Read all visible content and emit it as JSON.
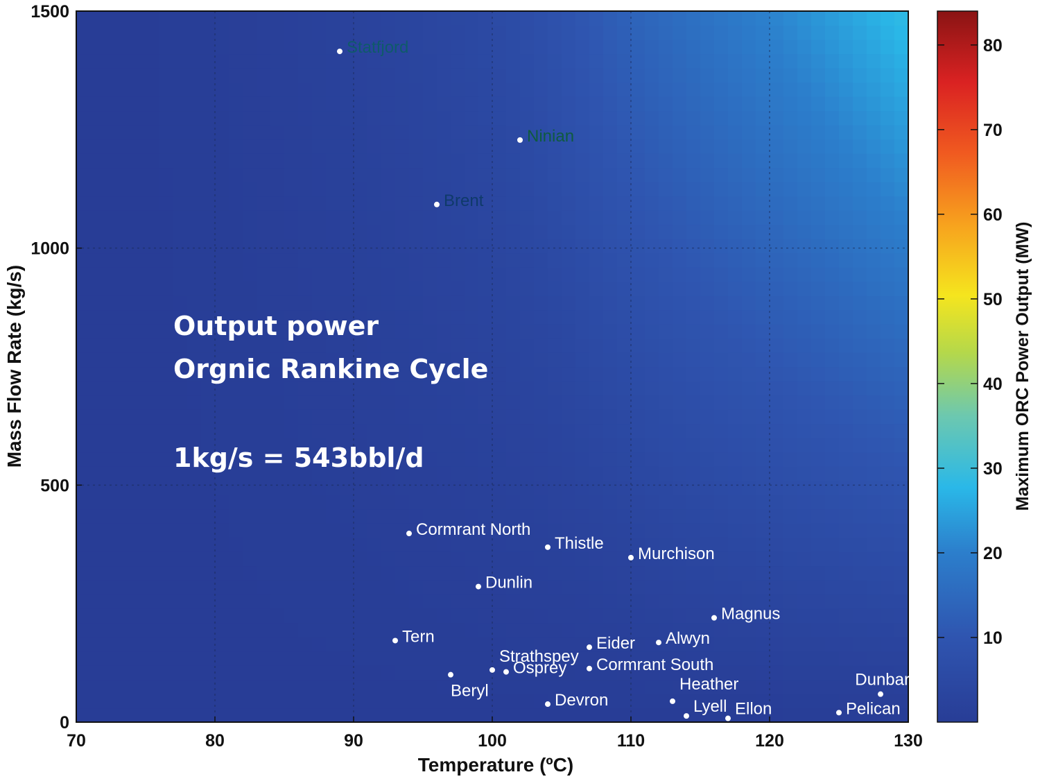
{
  "chart_data": {
    "type": "heatmap",
    "title": "",
    "xlabel": "Temperature (ºC)",
    "ylabel": "Mass Flow Rate (kg/s)",
    "xlim": [
      70,
      130
    ],
    "ylim": [
      0,
      1500
    ],
    "x_ticks": [
      70,
      80,
      90,
      100,
      110,
      120,
      130
    ],
    "y_ticks": [
      0,
      500,
      1000,
      1500
    ],
    "grid": true,
    "colorbar": {
      "label": "Maximum ORC Power Output (MW)",
      "range": [
        0,
        84
      ],
      "ticks": [
        10,
        20,
        30,
        40,
        50,
        60,
        70,
        80
      ]
    },
    "annotations": [
      "Output power",
      "Orgnic Rankine Cycle",
      "",
      "1kg/s = 543bbl/d"
    ],
    "points": [
      {
        "name": "Statfjord",
        "x": 89,
        "y": 1415
      },
      {
        "name": "Ninian",
        "x": 102,
        "y": 1228
      },
      {
        "name": "Brent",
        "x": 96,
        "y": 1092
      },
      {
        "name": "Cormrant North",
        "x": 94,
        "y": 398
      },
      {
        "name": "Thistle",
        "x": 104,
        "y": 369
      },
      {
        "name": "Murchison",
        "x": 110,
        "y": 347
      },
      {
        "name": "Dunlin",
        "x": 99,
        "y": 286
      },
      {
        "name": "Magnus",
        "x": 116,
        "y": 220
      },
      {
        "name": "Tern",
        "x": 93,
        "y": 172
      },
      {
        "name": "Eider",
        "x": 107,
        "y": 158
      },
      {
        "name": "Alwyn",
        "x": 112,
        "y": 168
      },
      {
        "name": "Strathspey",
        "x": 100,
        "y": 110
      },
      {
        "name": "Cormrant South",
        "x": 107,
        "y": 113
      },
      {
        "name": "Osprey",
        "x": 101,
        "y": 106
      },
      {
        "name": "Beryl",
        "x": 97,
        "y": 100
      },
      {
        "name": "Heather",
        "x": 113,
        "y": 44
      },
      {
        "name": "Dunbar",
        "x": 128,
        "y": 59
      },
      {
        "name": "Devron",
        "x": 104,
        "y": 38
      },
      {
        "name": "Lyell",
        "x": 114,
        "y": 13
      },
      {
        "name": "Ellon",
        "x": 117,
        "y": 8
      },
      {
        "name": "Pelican",
        "x": 125,
        "y": 20
      }
    ]
  }
}
